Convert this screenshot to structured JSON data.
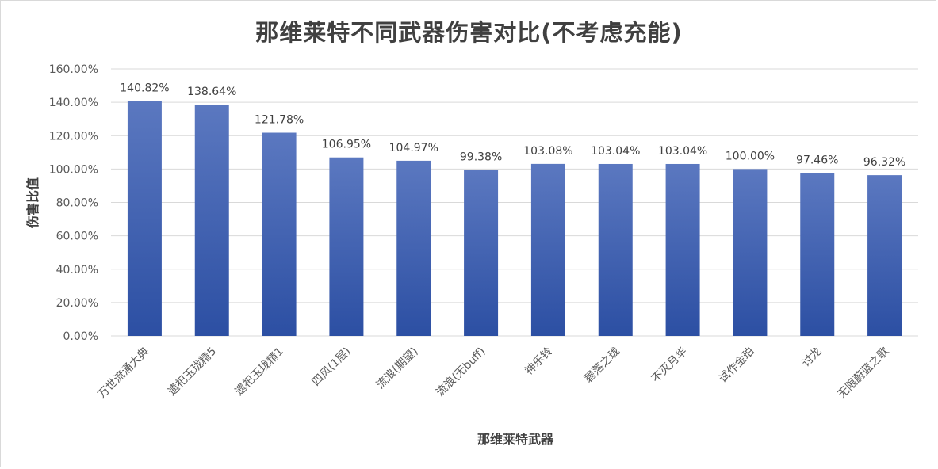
{
  "chart_data": {
    "type": "bar",
    "title": "那维莱特不同武器伤害对比(不考虑充能)",
    "xlabel": "那维莱特武器",
    "ylabel": "伤害比值",
    "categories": [
      "万世流涌大典",
      "遗祀玉珑精5",
      "遗祀玉珑精1",
      "四风(1层)",
      "流浪(期望)",
      "流浪(无buff)",
      "神乐铃",
      "碧落之珑",
      "不灭月华",
      "试作金珀",
      "讨龙",
      "无限蔚蓝之歌"
    ],
    "values": [
      140.82,
      138.64,
      121.78,
      106.95,
      104.97,
      99.38,
      103.08,
      103.04,
      103.04,
      100.0,
      97.46,
      96.32
    ],
    "data_labels": [
      "140.82%",
      "138.64%",
      "121.78%",
      "106.95%",
      "104.97%",
      "99.38%",
      "103.08%",
      "103.04%",
      "103.04%",
      "100.00%",
      "97.46%",
      "96.32%"
    ],
    "yticks": [
      "0.00%",
      "20.00%",
      "40.00%",
      "60.00%",
      "80.00%",
      "100.00%",
      "120.00%",
      "140.00%",
      "160.00%"
    ],
    "ylim": [
      0,
      160
    ],
    "grid": true,
    "legend": "none",
    "colors": {
      "bar_top": "#5b78c0",
      "bar_bottom": "#2c4fa3",
      "grid": "#d9d9d9"
    }
  }
}
